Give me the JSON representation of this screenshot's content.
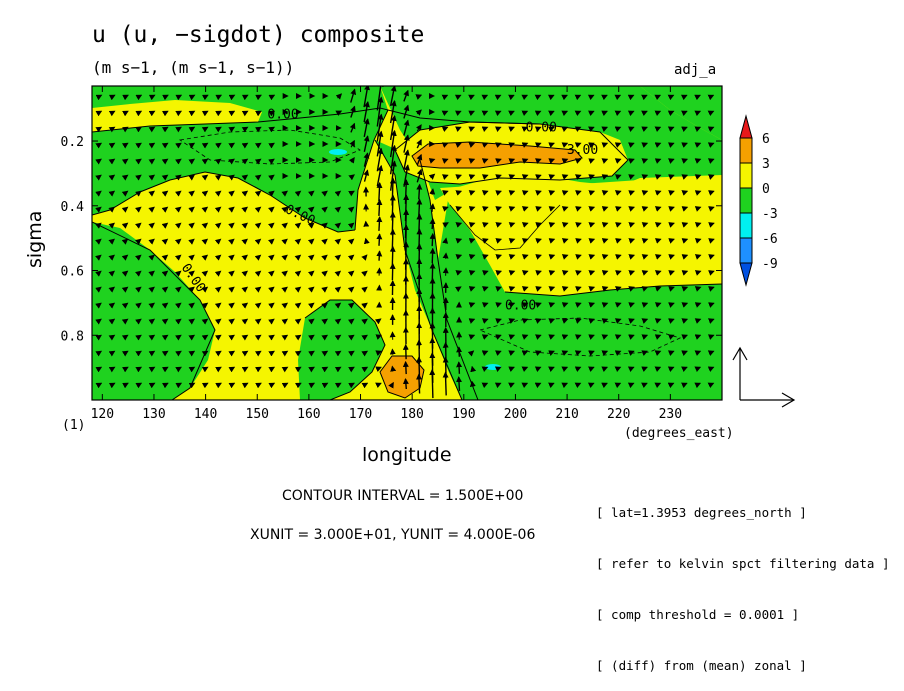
{
  "header": {
    "title": "u (u, −sigdot) composite",
    "units": "(m s−1, (m s−1, s−1))",
    "dataset": "adj_a"
  },
  "axes": {
    "xlabel": "longitude",
    "ylabel": "sigma",
    "x_unit": "(degrees_east)",
    "frame_id": "(1)"
  },
  "footer": {
    "contour_interval": "CONTOUR INTERVAL = 1.500E+00",
    "vector_units": "XUNIT = 3.000E+01, YUNIT = 4.000E-06"
  },
  "notes": [
    "[ lat=1.3953 degrees_north ]",
    "[ refer to kelvin spct filtering data ]",
    "[ comp threshold = 0.0001 ]",
    "[ (diff) from (mean) zonal ]"
  ],
  "chart_data": {
    "type": "heatmap",
    "title": "u (u, −sigdot) composite",
    "xlabel": "longitude",
    "ylabel": "sigma",
    "xlim": [
      118,
      240
    ],
    "ylim": [
      0.03,
      1.0
    ],
    "y_inverted": true,
    "x_ticks": [
      120,
      130,
      140,
      150,
      160,
      170,
      180,
      190,
      200,
      210,
      220,
      230
    ],
    "y_ticks": [
      0.2,
      0.4,
      0.6,
      0.8
    ],
    "colorbar": {
      "levels": [
        6,
        3,
        0,
        -3,
        -6,
        -9
      ],
      "colors": {
        "above_6": "#e8191a",
        "3_to_6": "#f5a000",
        "0_to_3": "#f5f500",
        "minus3_to_0": "#1fd21f",
        "minus6_to_minus3": "#00f0f0",
        "minus9_to_minus6": "#1e90ff",
        "below_minus9": "#0050e0"
      }
    },
    "contour_labels": [
      "0.00",
      "0.00",
      "3.00",
      "0.00",
      "0.00",
      "0.00"
    ],
    "vectors": "u, -sigdot wind field",
    "grid": false
  }
}
